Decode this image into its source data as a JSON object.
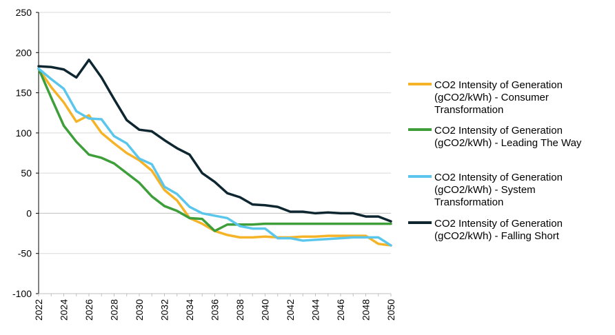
{
  "chart_data": {
    "type": "line",
    "title": "",
    "xlabel": "",
    "ylabel": "",
    "ylim": [
      -100,
      250
    ],
    "yticks": [
      -100,
      -50,
      0,
      50,
      100,
      150,
      200,
      250
    ],
    "xlim": [
      2022,
      2050
    ],
    "xticks": [
      2022,
      2024,
      2026,
      2028,
      2030,
      2032,
      2034,
      2036,
      2038,
      2040,
      2042,
      2044,
      2046,
      2048,
      2050
    ],
    "grid": "horizontal",
    "legend_position": "right",
    "x": [
      2022,
      2023,
      2024,
      2025,
      2026,
      2027,
      2028,
      2029,
      2030,
      2031,
      2032,
      2033,
      2034,
      2035,
      2036,
      2037,
      2038,
      2039,
      2040,
      2041,
      2042,
      2043,
      2044,
      2045,
      2046,
      2047,
      2048,
      2049,
      2050
    ],
    "series": [
      {
        "name": "CO2 Intensity of Generation (gCO2/kWh) - Consumer Transformation",
        "legend_lines": [
          "CO2 Intensity of Generation",
          "(gCO2/kWh) - Consumer",
          "Transformation"
        ],
        "color": "#F5B427",
        "values": [
          180,
          157,
          138,
          114,
          122,
          100,
          87,
          75,
          66,
          53,
          29,
          16,
          -6,
          -13,
          -22,
          -27,
          -30,
          -30,
          -29,
          -30,
          -30,
          -29,
          -29,
          -28,
          -28,
          -28,
          -28,
          -38,
          -40
        ]
      },
      {
        "name": "CO2 Intensity of Generation (gCO2/kWh) - Leading The Way",
        "legend_lines": [
          "CO2 Intensity of Generation",
          "(gCO2/kWh) - Leading The Way"
        ],
        "color": "#3E9E3A",
        "values": [
          180,
          144,
          109,
          89,
          73,
          69,
          62,
          50,
          38,
          21,
          9,
          3,
          -6,
          -7,
          -22,
          -14,
          -14,
          -14,
          -13,
          -13,
          -13,
          -13,
          -13,
          -13,
          -13,
          -13,
          -13,
          -13,
          -13
        ]
      },
      {
        "name": "CO2 Intensity of Generation (gCO2/kWh) - System Transformation",
        "legend_lines": [
          "CO2 Intensity of Generation",
          "(gCO2/kWh) - System",
          "Transformation"
        ],
        "color": "#5BC6EB",
        "values": [
          180,
          167,
          155,
          127,
          118,
          117,
          96,
          87,
          68,
          61,
          33,
          24,
          8,
          0,
          -3,
          -6,
          -16,
          -19,
          -19,
          -31,
          -31,
          -34,
          -33,
          -32,
          -31,
          -30,
          -30,
          -30,
          -40
        ]
      },
      {
        "name": "CO2 Intensity of Generation (gCO2/kWh) - Falling Short",
        "legend_lines": [
          "CO2 Intensity of Generation",
          "(gCO2/kWh) - Falling Short"
        ],
        "color": "#0D2630",
        "values": [
          183,
          182,
          179,
          169,
          191,
          169,
          142,
          116,
          104,
          102,
          91,
          81,
          73,
          50,
          39,
          25,
          20,
          11,
          10,
          8,
          2,
          2,
          0,
          1,
          0,
          0,
          -4,
          -4,
          -10
        ]
      }
    ]
  }
}
